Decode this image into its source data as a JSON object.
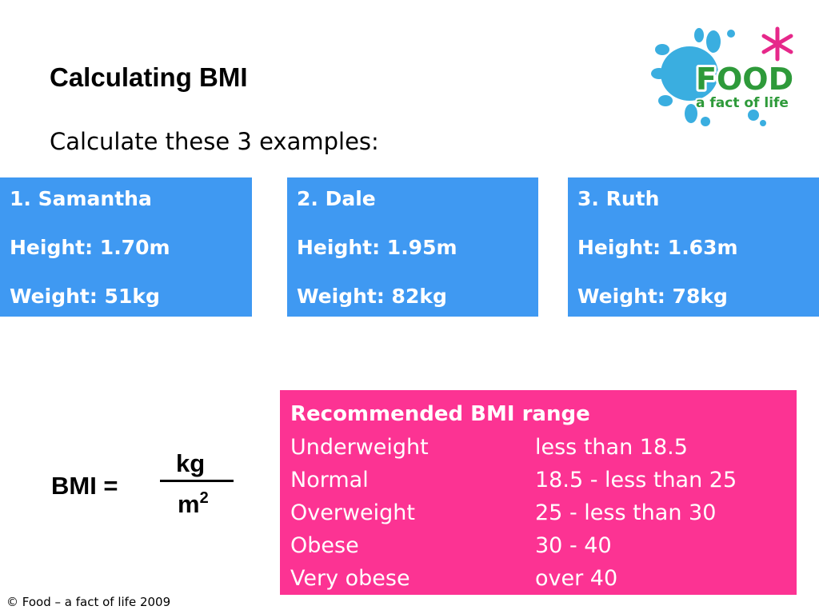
{
  "slide": {
    "title": "Calculating BMI",
    "subtitle": "Calculate these 3 examples:"
  },
  "logo": {
    "word": "FOOD",
    "tagline": "a fact of life",
    "colors": {
      "splash": "#3aaee0",
      "word": "#2e9a3a",
      "star": "#e6288a"
    }
  },
  "examples": [
    {
      "name": "1. Samantha",
      "height": "Height: 1.70m",
      "weight": "Weight: 51kg"
    },
    {
      "name": "2. Dale",
      "height": "Height: 1.95m",
      "weight": "Weight: 82kg"
    },
    {
      "name": "3. Ruth",
      "height": "Height: 1.63m",
      "weight": "Weight: 78kg"
    }
  ],
  "formula": {
    "lhs": "BMI =",
    "numerator": "kg",
    "denominator_base": "m",
    "denominator_exp": "2"
  },
  "bmi_range": {
    "title": "Recommended BMI range",
    "rows": [
      {
        "category": "Underweight",
        "range": "less than 18.5"
      },
      {
        "category": "Normal",
        "range": "18.5 -  less than 25"
      },
      {
        "category": "Overweight",
        "range": "25 - less than 30"
      },
      {
        "category": "Obese",
        "range": "30 - 40"
      },
      {
        "category": "Very obese",
        "range": "over 40"
      }
    ]
  },
  "footer": "© Food – a fact of life 2009",
  "colors": {
    "card_blue": "#3f99f2",
    "range_pink": "#fc3393"
  }
}
